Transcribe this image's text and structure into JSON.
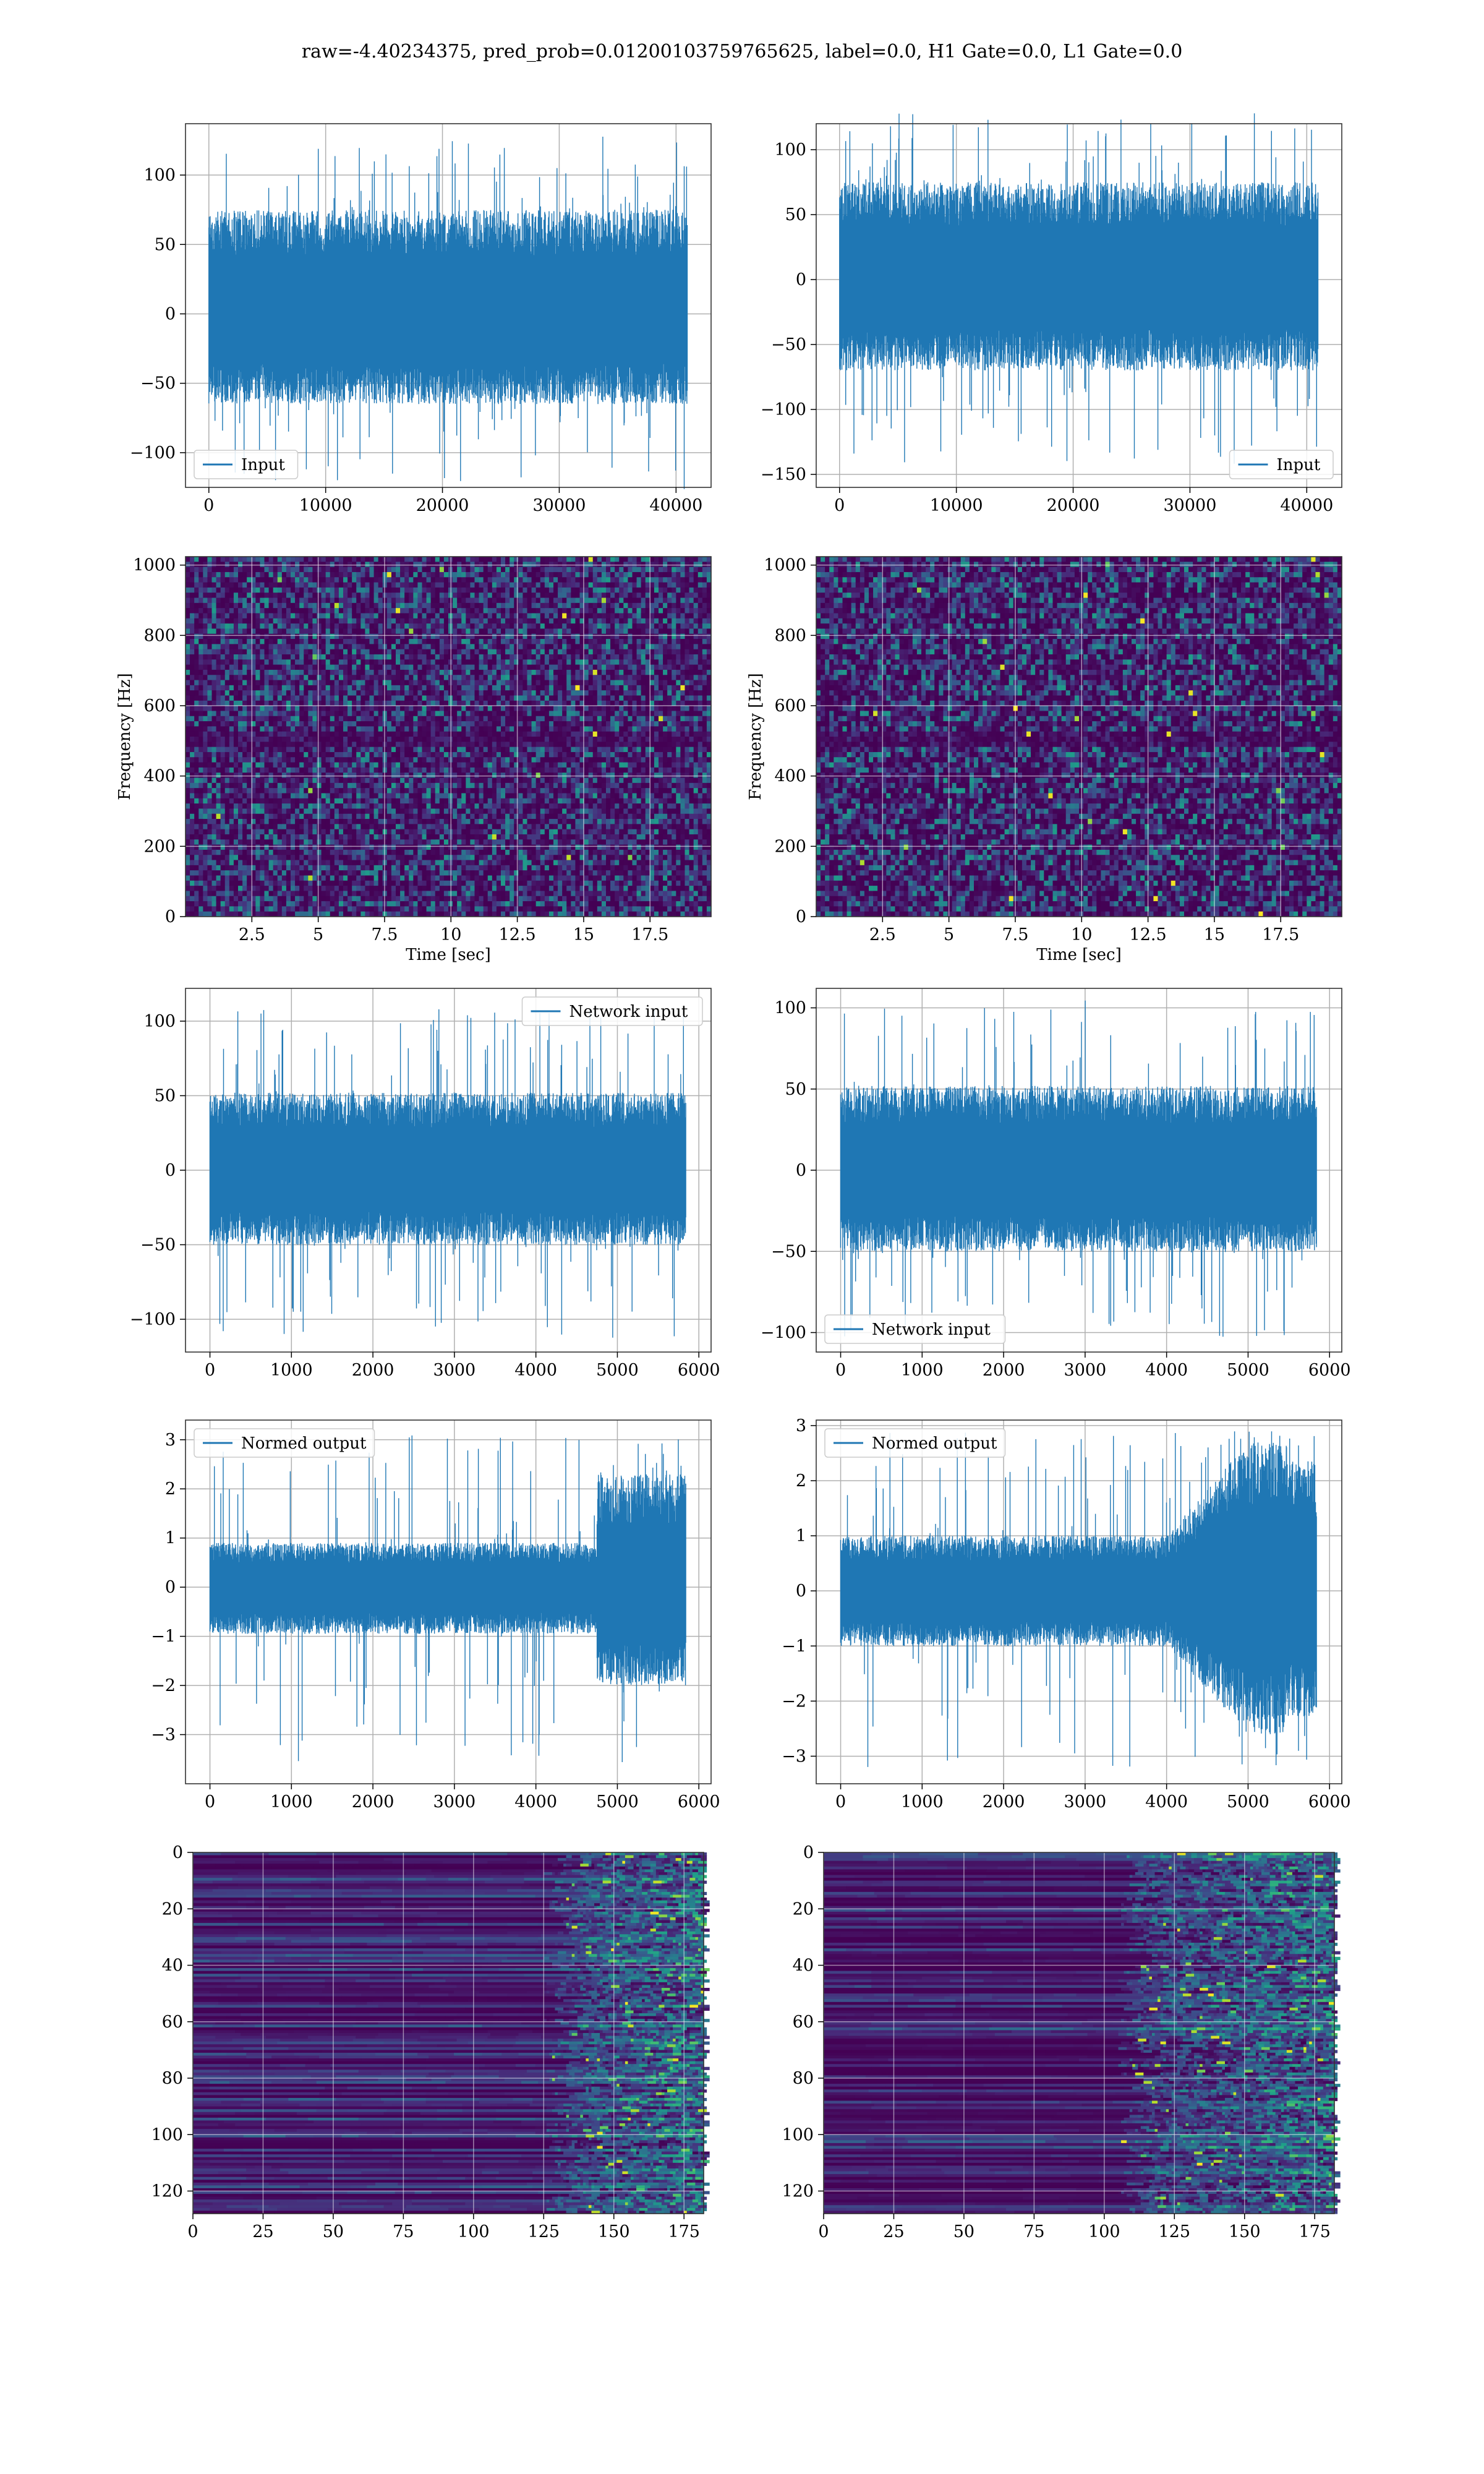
{
  "figure": {
    "title": "raw=-4.40234375, pred_prob=0.01200103759765625, label=0.0, H1 Gate=0.0, L1 Gate=0.0"
  },
  "colors": {
    "line": "#1f77b4",
    "grid": "#b0b0b0",
    "viridis_dark": "#440154",
    "viridis_mid": "#21918c",
    "viridis_bright": "#fde725"
  },
  "chart_data": [
    {
      "id": "h1-input",
      "type": "line",
      "row": 1,
      "col": 1,
      "series": [
        {
          "name": "Input",
          "n_points": 40960,
          "envelope": {
            "typical": [
              -65,
              75
            ],
            "peaks": [
              -127,
              128
            ]
          }
        }
      ],
      "xlim": [
        -2000,
        43000
      ],
      "ylim": [
        -125,
        137
      ],
      "xticks": [
        0,
        10000,
        20000,
        30000,
        40000
      ],
      "yticks": [
        -100,
        -50,
        0,
        50,
        100
      ],
      "xlabel": "",
      "ylabel": "",
      "legend": "lower left",
      "grid": true
    },
    {
      "id": "l1-input",
      "type": "line",
      "row": 1,
      "col": 2,
      "series": [
        {
          "name": "Input",
          "n_points": 40960,
          "envelope": {
            "typical": [
              -70,
              75
            ],
            "peaks": [
              -145,
              128
            ]
          }
        }
      ],
      "xlim": [
        -2000,
        43000
      ],
      "ylim": [
        -160,
        120
      ],
      "xticks": [
        0,
        10000,
        20000,
        30000,
        40000
      ],
      "yticks": [
        -150,
        -100,
        -50,
        0,
        50,
        100
      ],
      "xlabel": "",
      "ylabel": "",
      "legend": "lower right",
      "grid": true
    },
    {
      "id": "h1-spectrogram",
      "type": "heatmap",
      "row": 2,
      "col": 1,
      "xlim": [
        0,
        19.8
      ],
      "ylim": [
        0,
        1024
      ],
      "xticks": [
        2.5,
        5.0,
        7.5,
        10.0,
        12.5,
        15.0,
        17.5
      ],
      "yticks": [
        0,
        200,
        400,
        600,
        800,
        1000
      ],
      "xlabel": "Time [sec]",
      "ylabel": "Frequency [Hz]",
      "colormap": "viridis",
      "grid": true
    },
    {
      "id": "l1-spectrogram",
      "type": "heatmap",
      "row": 2,
      "col": 2,
      "xlim": [
        0,
        19.8
      ],
      "ylim": [
        0,
        1024
      ],
      "xticks": [
        2.5,
        5.0,
        7.5,
        10.0,
        12.5,
        15.0,
        17.5
      ],
      "yticks": [
        0,
        200,
        400,
        600,
        800,
        1000
      ],
      "xlabel": "Time [sec]",
      "ylabel": "Frequency [Hz]",
      "colormap": "viridis",
      "grid": true
    },
    {
      "id": "h1-network-input",
      "type": "line",
      "row": 3,
      "col": 1,
      "series": [
        {
          "name": "Network input",
          "n_points": 5840,
          "envelope": {
            "typical": [
              -50,
              52
            ],
            "peaks": [
              -113,
              108
            ]
          }
        }
      ],
      "xlim": [
        -300,
        6150
      ],
      "ylim": [
        -122,
        122
      ],
      "xticks": [
        0,
        1000,
        2000,
        3000,
        4000,
        5000,
        6000
      ],
      "yticks": [
        -100,
        -50,
        0,
        50,
        100
      ],
      "xlabel": "",
      "ylabel": "",
      "legend": "upper right",
      "grid": true
    },
    {
      "id": "l1-network-input",
      "type": "line",
      "row": 3,
      "col": 2,
      "series": [
        {
          "name": "Network input",
          "n_points": 5840,
          "envelope": {
            "typical": [
              -50,
              52
            ],
            "peaks": [
              -103,
              105
            ]
          }
        }
      ],
      "xlim": [
        -300,
        6150
      ],
      "ylim": [
        -112,
        112
      ],
      "xticks": [
        0,
        1000,
        2000,
        3000,
        4000,
        5000,
        6000
      ],
      "yticks": [
        -100,
        -50,
        0,
        50,
        100
      ],
      "xlabel": "",
      "ylabel": "",
      "legend": "lower left",
      "grid": true
    },
    {
      "id": "h1-normed-output",
      "type": "line",
      "row": 4,
      "col": 1,
      "series": [
        {
          "name": "Normed output",
          "n_points": 5840,
          "envelope": {
            "before_4750": [
              -0.95,
              0.9
            ],
            "after_4750": [
              -2.0,
              2.3
            ],
            "peaks": [
              -3.6,
              3.1
            ]
          }
        }
      ],
      "xlim": [
        -300,
        6150
      ],
      "ylim": [
        -4.0,
        3.4
      ],
      "xticks": [
        0,
        1000,
        2000,
        3000,
        4000,
        5000,
        6000
      ],
      "yticks": [
        -3,
        -2,
        -1,
        0,
        1,
        2,
        3
      ],
      "xlabel": "",
      "ylabel": "",
      "legend": "upper left",
      "grid": true
    },
    {
      "id": "l1-normed-output",
      "type": "line",
      "row": 4,
      "col": 2,
      "series": [
        {
          "name": "Normed output",
          "n_points": 5840,
          "envelope": {
            "before_4000": [
              -1.0,
              1.0
            ],
            "peak_region": [
              -2.6,
              2.7
            ],
            "peaks": [
              -3.2,
              2.9
            ]
          }
        }
      ],
      "xlim": [
        -300,
        6150
      ],
      "ylim": [
        -3.5,
        3.1
      ],
      "xticks": [
        0,
        1000,
        2000,
        3000,
        4000,
        5000,
        6000
      ],
      "yticks": [
        -3,
        -2,
        -1,
        0,
        1,
        2,
        3
      ],
      "xlabel": "",
      "ylabel": "",
      "legend": "upper left",
      "grid": true
    },
    {
      "id": "h1-feature-map",
      "type": "heatmap",
      "row": 5,
      "col": 1,
      "xlim": [
        0,
        182
      ],
      "ylim": [
        128,
        0
      ],
      "xticks": [
        0,
        25,
        50,
        75,
        100,
        125,
        150,
        175
      ],
      "yticks": [
        0,
        20,
        40,
        60,
        80,
        100,
        120
      ],
      "xlabel": "",
      "ylabel": "",
      "colormap": "viridis",
      "grid": true,
      "activity_onset_x": 125
    },
    {
      "id": "l1-feature-map",
      "type": "heatmap",
      "row": 5,
      "col": 2,
      "xlim": [
        0,
        182
      ],
      "ylim": [
        128,
        0
      ],
      "xticks": [
        0,
        25,
        50,
        75,
        100,
        125,
        150,
        175
      ],
      "yticks": [
        0,
        20,
        40,
        60,
        80,
        100,
        120
      ],
      "xlabel": "",
      "ylabel": "",
      "colormap": "viridis",
      "grid": true,
      "activity_onset_x": 105
    }
  ]
}
